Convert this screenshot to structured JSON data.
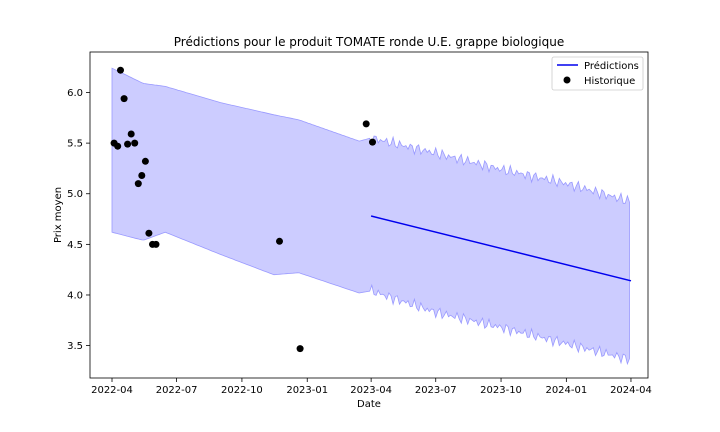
{
  "chart_data": {
    "type": "line",
    "title": "Prédictions pour le produit TOMATE ronde U.E. grappe biologique",
    "xlabel": "Date",
    "ylabel": "Prix moyen",
    "xlim": [
      "2022-03-01",
      "2024-04-25"
    ],
    "ylim": [
      3.18,
      6.4
    ],
    "x_ticks": [
      "2022-04",
      "2022-07",
      "2022-10",
      "2023-01",
      "2023-04",
      "2023-07",
      "2023-10",
      "2024-01",
      "2024-04"
    ],
    "y_ticks": [
      "3.5",
      "4.0",
      "4.5",
      "5.0",
      "5.5",
      "6.0"
    ],
    "legend_position": "top-right",
    "grid": false,
    "colors": {
      "prediction_line": "#0000ee",
      "band_fill": "#ccccff",
      "band_edge": "#9999ff",
      "history_points": "#000000"
    },
    "series": [
      {
        "name": "Prédictions",
        "kind": "line",
        "x": [
          "2023-04-01",
          "2024-04-01"
        ],
        "y": [
          4.78,
          4.14
        ]
      },
      {
        "name": "Historique",
        "kind": "scatter",
        "x": [
          "2022-04-04",
          "2022-04-09",
          "2022-04-13",
          "2022-04-18",
          "2022-04-23",
          "2022-04-28",
          "2022-05-03",
          "2022-05-08",
          "2022-05-13",
          "2022-05-18",
          "2022-05-23",
          "2022-05-28",
          "2022-06-02",
          "2022-11-23",
          "2022-12-22",
          "2023-03-25",
          "2023-04-03"
        ],
        "y": [
          5.5,
          5.47,
          6.22,
          5.94,
          5.49,
          5.59,
          5.5,
          5.1,
          5.18,
          5.32,
          4.61,
          4.5,
          4.5,
          4.53,
          3.47,
          5.69,
          5.51
        ]
      }
    ],
    "confidence_band": {
      "x": [
        "2022-04-01",
        "2022-05-15",
        "2022-06-15",
        "2022-09-01",
        "2022-11-15",
        "2022-12-20",
        "2023-03-15",
        "2023-04-01",
        "2023-07-01",
        "2023-10-01",
        "2024-01-01",
        "2024-04-01"
      ],
      "upper": [
        6.24,
        6.09,
        6.06,
        5.9,
        5.78,
        5.73,
        5.52,
        5.55,
        5.4,
        5.24,
        5.1,
        4.92
      ],
      "lower": [
        4.62,
        4.54,
        4.62,
        4.4,
        4.2,
        4.22,
        4.02,
        4.04,
        3.83,
        3.68,
        3.52,
        3.36
      ]
    }
  }
}
